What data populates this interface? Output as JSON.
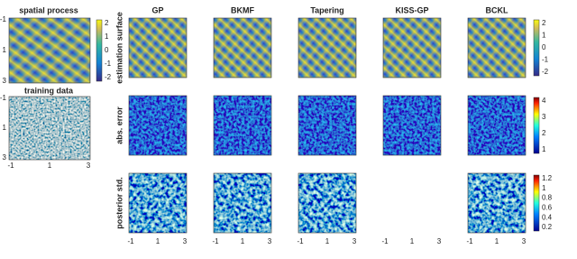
{
  "spatial_process": {
    "title": "spatial process",
    "yticks": [
      "-1",
      "1",
      "3"
    ],
    "colorbar": [
      "2",
      "1",
      "0",
      "-1",
      "-2"
    ]
  },
  "training_data": {
    "title": "training data",
    "yticks": [
      "-1",
      "1",
      "3"
    ],
    "xticks": [
      "-1",
      "1",
      "3"
    ]
  },
  "methods": [
    "GP",
    "BKMF",
    "Tapering",
    "KISS-GP",
    "BCKL"
  ],
  "rows": [
    {
      "label": "estimation surface",
      "colorbar": [
        "2",
        "1",
        "0",
        "-1",
        "-2"
      ]
    },
    {
      "label": "abs. error",
      "colorbar": [
        "4",
        "3",
        "2",
        "1"
      ]
    },
    {
      "label": "posterior std.",
      "colorbar": [
        "1.2",
        "1",
        "0.8",
        "0.6",
        "0.4",
        "0.2"
      ]
    }
  ],
  "xticks": [
    "-1",
    "1",
    "3"
  ]
}
